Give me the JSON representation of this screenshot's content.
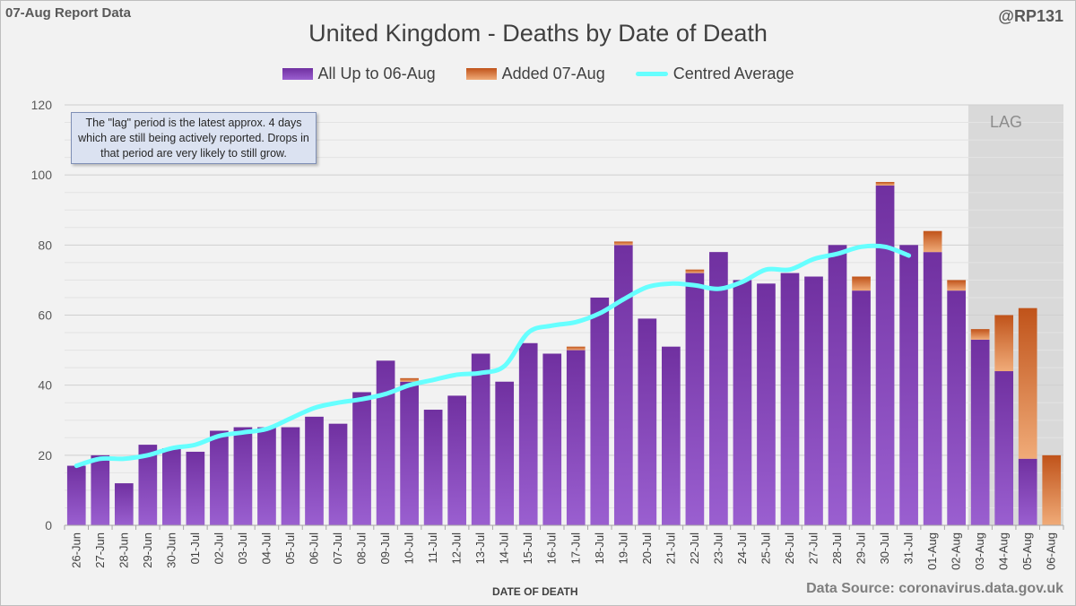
{
  "report_label": "07-Aug Report Data",
  "handle": "@RP131",
  "source": "Data Source: coronavirus.data.gov.uk",
  "note": "The \"lag\" period is the latest approx. 4 days which are still being actively reported. Drops in that period are very likely to still grow.",
  "lag_label": "LAG",
  "colors": {
    "base_top": "#7030a0",
    "base_bottom": "#9a5fd0",
    "added_top": "#c0531a",
    "added_bottom": "#f0ab78",
    "average": "#66ffff",
    "lag_band": "#d9d9d9"
  },
  "chart_data": {
    "type": "bar",
    "stacked": true,
    "title": "United Kingdom - Deaths by Date of Death",
    "xlabel": "DATE OF DEATH",
    "ylabel": "",
    "ylim": [
      0,
      120
    ],
    "yticks": [
      0,
      20,
      40,
      60,
      80,
      100,
      120
    ],
    "grid": true,
    "legend_position": "top-center",
    "categories": [
      "26-Jun",
      "27-Jun",
      "28-Jun",
      "29-Jun",
      "30-Jun",
      "01-Jul",
      "02-Jul",
      "03-Jul",
      "04-Jul",
      "05-Jul",
      "06-Jul",
      "07-Jul",
      "08-Jul",
      "09-Jul",
      "10-Jul",
      "11-Jul",
      "12-Jul",
      "13-Jul",
      "14-Jul",
      "15-Jul",
      "16-Jul",
      "17-Jul",
      "18-Jul",
      "19-Jul",
      "20-Jul",
      "21-Jul",
      "22-Jul",
      "23-Jul",
      "24-Jul",
      "25-Jul",
      "26-Jul",
      "27-Jul",
      "28-Jul",
      "29-Jul",
      "30-Jul",
      "31-Jul",
      "01-Aug",
      "02-Aug",
      "03-Aug",
      "04-Aug",
      "05-Aug",
      "06-Aug"
    ],
    "series": [
      {
        "name": "All Up to 06-Aug",
        "values": [
          17,
          20,
          12,
          23,
          22,
          21,
          27,
          28,
          28,
          28,
          31,
          29,
          38,
          47,
          41,
          33,
          37,
          49,
          41,
          52,
          49,
          50,
          65,
          80,
          59,
          51,
          72,
          78,
          70,
          69,
          72,
          71,
          80,
          67,
          97,
          80,
          78,
          67,
          53,
          44,
          19,
          0
        ]
      },
      {
        "name": "Added 07-Aug",
        "values": [
          0,
          0,
          0,
          0,
          0,
          0,
          0,
          0,
          0,
          0,
          0,
          0,
          0,
          0,
          1,
          0,
          0,
          0,
          0,
          0,
          0,
          1,
          0,
          1,
          0,
          0,
          1,
          0,
          0,
          0,
          0,
          0,
          0,
          4,
          1,
          0,
          6,
          3,
          3,
          16,
          43,
          20
        ]
      },
      {
        "name": "Centred Average",
        "type": "line",
        "values": [
          17,
          19,
          19,
          20,
          22,
          23,
          25.5,
          26.5,
          27.5,
          30.5,
          33.5,
          35,
          36,
          37.5,
          40,
          41.5,
          43,
          43.5,
          45.5,
          55,
          57,
          58,
          60.5,
          64.5,
          68,
          69,
          68.5,
          67.5,
          69.5,
          73,
          73,
          76,
          77.5,
          79.5,
          79.5,
          77,
          null,
          null,
          null,
          null,
          null,
          null
        ]
      }
    ],
    "lag_categories": [
      "03-Aug",
      "04-Aug",
      "05-Aug",
      "06-Aug"
    ]
  }
}
